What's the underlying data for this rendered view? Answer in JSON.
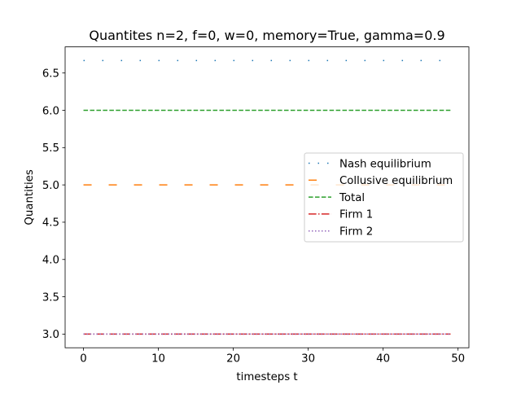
{
  "chart_data": {
    "type": "line",
    "title": "Quantites n=2, f=0, w=0, memory=True, gamma=0.9",
    "xlabel": "timesteps t",
    "ylabel": "Quantities",
    "xlim": [
      -2.45,
      51.45
    ],
    "ylim": [
      2.8167,
      6.85
    ],
    "xticks": [
      0,
      10,
      20,
      30,
      40,
      50
    ],
    "yticks": [
      3.0,
      3.5,
      4.0,
      4.5,
      5.0,
      5.5,
      6.0,
      6.5
    ],
    "ytick_labels": [
      "3.0",
      "3.5",
      "4.0",
      "4.5",
      "5.0",
      "5.5",
      "6.0",
      "6.5"
    ],
    "x_range": [
      0,
      49
    ],
    "legend_position": "center-right",
    "grid": false,
    "series": [
      {
        "name": "Nash equilibrium",
        "color": "#1f77b4",
        "style": "dotted-sparse",
        "value": 6.6667,
        "x_start": 0,
        "x_end": 49
      },
      {
        "name": "Collusive equilibrium",
        "color": "#ff7f0e",
        "style": "dashed-long",
        "value": 5.0,
        "x_start": 0,
        "x_end": 49
      },
      {
        "name": "Total",
        "color": "#2ca02c",
        "style": "dashed",
        "value": 6.0,
        "x_start": 0,
        "x_end": 49
      },
      {
        "name": "Firm 1",
        "color": "#d62728",
        "style": "dashdot",
        "value": 3.0,
        "x_start": 0,
        "x_end": 49
      },
      {
        "name": "Firm 2",
        "color": "#9467bd",
        "style": "dotted",
        "value": 3.0,
        "x_start": 0,
        "x_end": 49
      }
    ]
  }
}
